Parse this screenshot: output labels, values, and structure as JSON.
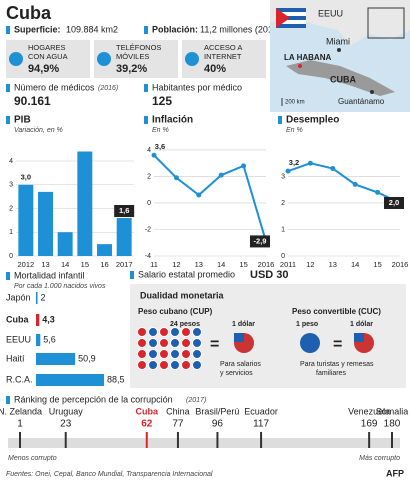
{
  "header": {
    "title": "Cuba",
    "area_label": "Superficie:",
    "area_value": "109.884 km2",
    "pop_label": "Población:",
    "pop_value": "11,2 millones (2016)"
  },
  "map": {
    "usa": "EEUU",
    "miami": "Miami",
    "havana": "LA HABANA",
    "cuba": "CUBA",
    "guantanamo": "Guantánamo",
    "scale": "200 km"
  },
  "indicators": [
    {
      "label": [
        "HOGARES",
        "CON AGUA"
      ],
      "value": "94,9%"
    },
    {
      "label": [
        "TELÉFONOS",
        "MÓVILES"
      ],
      "value": "39,2%"
    },
    {
      "label": [
        "ACCESO A",
        "INTERNET"
      ],
      "value": "40%"
    }
  ],
  "doctors": {
    "label": "Número de médicos",
    "year": "(2016)",
    "value": "90.161"
  },
  "per_doctor": {
    "label": "Habitantes por médico",
    "value": "125"
  },
  "salary": {
    "label": "Salario estatal promedio",
    "value": "USD 30"
  },
  "currency": {
    "title": "Dualidad monetaria",
    "cup": {
      "name": "Peso cubano (CUP)",
      "amount": "24 pesos",
      "equals": "1 dólar",
      "use": [
        "Para salarios",
        "y servicios"
      ]
    },
    "cuc": {
      "name": "Peso convertible (CUC)",
      "amount": "1 peso",
      "equals": "1 dólar",
      "use": [
        "Para turistas y remesas",
        "familiares"
      ]
    }
  },
  "chart_data": [
    {
      "type": "bar",
      "title": "PIB",
      "subtitle": "Variación, en %",
      "categories": [
        "2012",
        "13",
        "14",
        "15",
        "16",
        "2017"
      ],
      "values": [
        3.0,
        2.7,
        1.0,
        4.4,
        0.5,
        1.6
      ],
      "value_labels": [
        "3,0",
        null,
        null,
        null,
        null,
        "1,6"
      ],
      "color": "#1e90d6",
      "ylim": [
        0,
        4.8
      ],
      "yticks": [
        0,
        1,
        2,
        3,
        4
      ],
      "grid": true
    },
    {
      "type": "line",
      "title": "Inflación",
      "subtitle": "En %",
      "categories": [
        "11",
        "12",
        "13",
        "14",
        "15",
        "2016"
      ],
      "values": [
        3.6,
        1.9,
        0.6,
        2.1,
        2.8,
        -2.9
      ],
      "value_labels": [
        "3,6",
        null,
        null,
        null,
        null,
        "-2,9"
      ],
      "color": "#1e90d6",
      "ylim": [
        -4,
        4.6
      ],
      "yticks": [
        -4,
        -2,
        0,
        2,
        4
      ],
      "grid": true
    },
    {
      "type": "line",
      "title": "Desempleo",
      "subtitle": "En %",
      "categories": [
        "2011",
        "12",
        "13",
        "14",
        "15",
        "2016"
      ],
      "values": [
        3.2,
        3.5,
        3.3,
        2.7,
        2.4,
        2.0
      ],
      "value_labels": [
        "3,2",
        null,
        null,
        null,
        null,
        "2,0"
      ],
      "color": "#1e90d6",
      "ylim": [
        0,
        4.3
      ],
      "yticks": [
        0,
        1,
        2,
        3
      ],
      "grid": true
    },
    {
      "type": "hbar",
      "title": "Mortalidad infantil",
      "subtitle": "Por cada 1.000 nacidos vivos",
      "categories": [
        "Japón",
        "Cuba",
        "EEUU",
        "Haití",
        "R.C.A."
      ],
      "values": [
        2,
        4.3,
        5.6,
        50.9,
        88.5
      ],
      "value_labels": [
        "2",
        "4,3",
        "5,6",
        "50,9",
        "88,5"
      ],
      "colors": [
        "#1e90d6",
        "#d9262c",
        "#1e90d6",
        "#1e90d6",
        "#1e90d6"
      ]
    },
    {
      "type": "dot",
      "title": "Ránking de percepción de la corrupción",
      "subtitle": "(2017)",
      "categories": [
        "N. Zelanda",
        "Uruguay",
        "Cuba",
        "China",
        "Brasil/Perú",
        "Ecuador",
        "Venezuela",
        "Somalia"
      ],
      "values": [
        1,
        23,
        62,
        77,
        96,
        117,
        169,
        180
      ],
      "colors": [
        "#333",
        "#333",
        "#d9262c",
        "#333",
        "#333",
        "#333",
        "#333",
        "#333"
      ],
      "xlim": [
        1,
        180
      ],
      "x_left_label": "Menos corrupto",
      "x_right_label": "Más corrupto"
    }
  ],
  "footer": {
    "sources": "Fuentes: Onei, Cepal, Banco Mundial, Transparencia Internacional",
    "credit": "AFP"
  }
}
